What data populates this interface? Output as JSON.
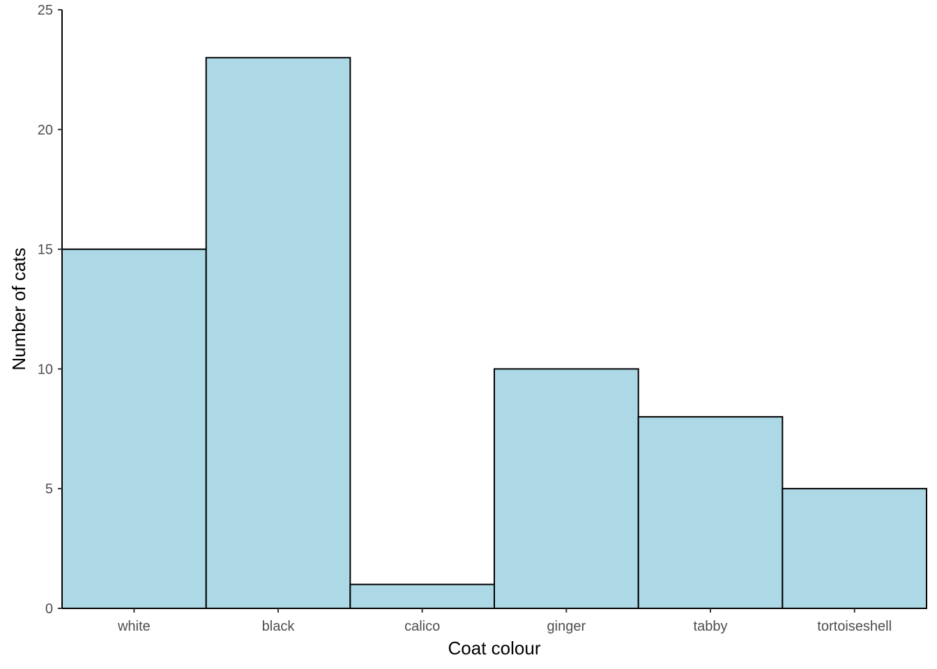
{
  "chart_data": {
    "type": "bar",
    "title": "",
    "xlabel": "Coat colour",
    "ylabel": "Number of cats",
    "categories": [
      "white",
      "black",
      "calico",
      "ginger",
      "tabby",
      "tortoiseshell"
    ],
    "values": [
      15,
      23,
      1,
      10,
      8,
      5
    ],
    "ylim": [
      0,
      25
    ],
    "yticks": [
      0,
      5,
      10,
      15,
      20,
      25
    ],
    "bar_fill": "#add8e6",
    "bar_stroke": "#000000",
    "grid": false,
    "legend": "none"
  }
}
